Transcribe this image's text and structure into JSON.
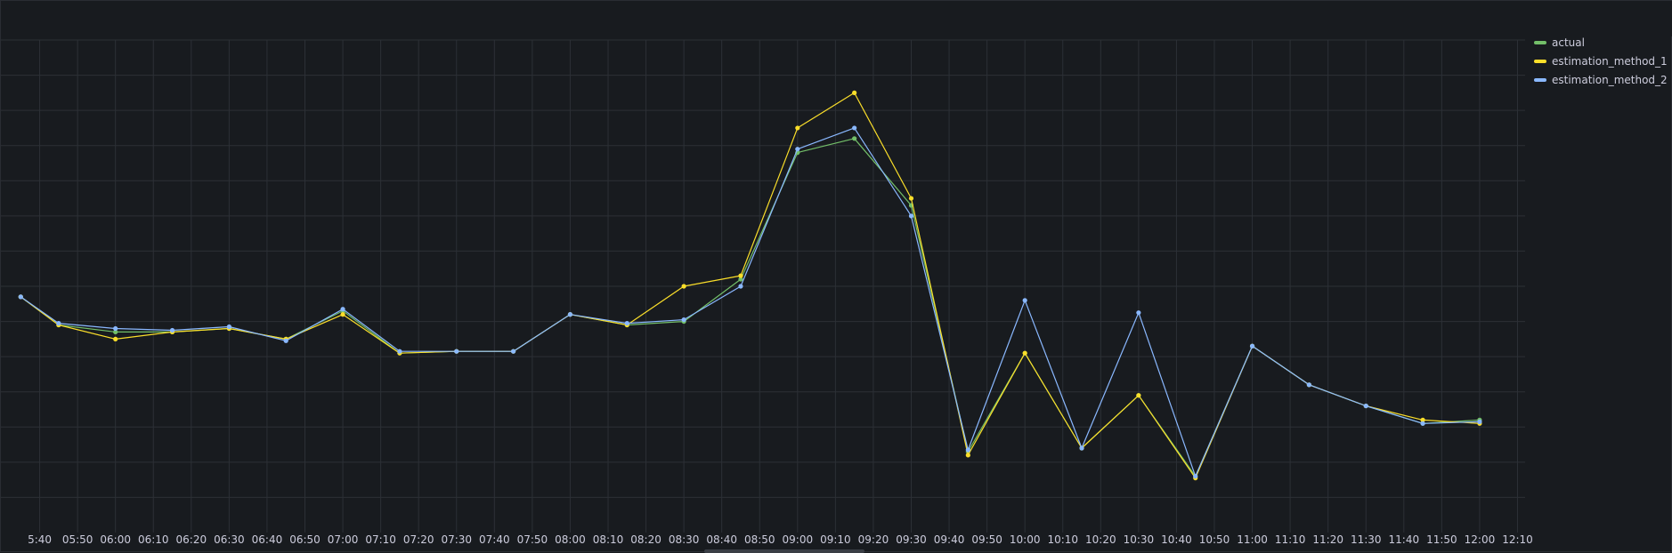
{
  "chart_data": {
    "type": "line",
    "title": "",
    "xlabel": "",
    "ylabel": "",
    "x": [
      "05:35",
      "05:45",
      "06:00",
      "06:15",
      "06:30",
      "06:45",
      "07:00",
      "07:15",
      "07:30",
      "07:45",
      "08:00",
      "08:15",
      "08:30",
      "08:45",
      "09:00",
      "09:15",
      "09:30",
      "09:45",
      "10:00",
      "10:15",
      "10:30",
      "10:45",
      "11:00",
      "11:15",
      "11:30",
      "11:45",
      "12:00"
    ],
    "x_ticks": [
      "05:40",
      "05:50",
      "06:00",
      "06:10",
      "06:20",
      "06:30",
      "06:40",
      "06:50",
      "07:00",
      "07:10",
      "07:20",
      "07:30",
      "07:40",
      "07:50",
      "08:00",
      "08:10",
      "08:20",
      "08:30",
      "08:40",
      "08:50",
      "09:00",
      "09:10",
      "09:20",
      "09:30",
      "09:40",
      "09:50",
      "10:00",
      "10:10",
      "10:20",
      "10:30",
      "10:40",
      "10:50",
      "11:00",
      "11:10",
      "11:20",
      "11:30",
      "11:40",
      "11:50",
      "12:00",
      "12:10"
    ],
    "x_tick_labels": [
      "5:40",
      "05:50",
      "06:00",
      "06:10",
      "06:20",
      "06:30",
      "06:40",
      "06:50",
      "07:00",
      "07:10",
      "07:20",
      "07:30",
      "07:40",
      "07:50",
      "08:00",
      "08:10",
      "08:20",
      "08:30",
      "08:40",
      "08:50",
      "09:00",
      "09:10",
      "09:20",
      "09:30",
      "09:40",
      "09:50",
      "10:00",
      "10:10",
      "10:20",
      "10:30",
      "10:40",
      "10:50",
      "11:00",
      "11:10",
      "11:20",
      "11:30",
      "11:40",
      "11:50",
      "12:00",
      "12:10"
    ],
    "ylim": [
      0,
      14
    ],
    "grid": true,
    "legend_position": "top-right",
    "series": [
      {
        "name": "actual",
        "color": "#73bf69",
        "values": [
          6.7,
          5.9,
          5.7,
          5.7,
          5.8,
          5.5,
          6.3,
          5.1,
          5.15,
          5.15,
          6.2,
          5.9,
          6.0,
          7.2,
          10.8,
          11.2,
          9.3,
          2.3,
          5.1,
          2.4,
          3.9,
          1.6,
          5.3,
          4.2,
          3.6,
          3.1,
          3.2
        ]
      },
      {
        "name": "estimation_method_1",
        "color": "#fade2a",
        "values": [
          6.7,
          5.9,
          5.5,
          5.7,
          5.8,
          5.5,
          6.2,
          5.1,
          5.15,
          5.15,
          6.2,
          5.9,
          7.0,
          7.3,
          11.5,
          12.5,
          9.5,
          2.2,
          5.1,
          2.4,
          3.9,
          1.55,
          5.3,
          4.2,
          3.6,
          3.2,
          3.1
        ]
      },
      {
        "name": "estimation_method_2",
        "color": "#8ab8ff",
        "values": [
          6.7,
          5.95,
          5.8,
          5.75,
          5.85,
          5.45,
          6.35,
          5.15,
          5.15,
          5.15,
          6.2,
          5.95,
          6.05,
          7.0,
          10.9,
          11.5,
          9.0,
          2.35,
          6.6,
          2.4,
          6.25,
          1.6,
          5.3,
          4.2,
          3.6,
          3.1,
          3.15
        ]
      }
    ]
  }
}
